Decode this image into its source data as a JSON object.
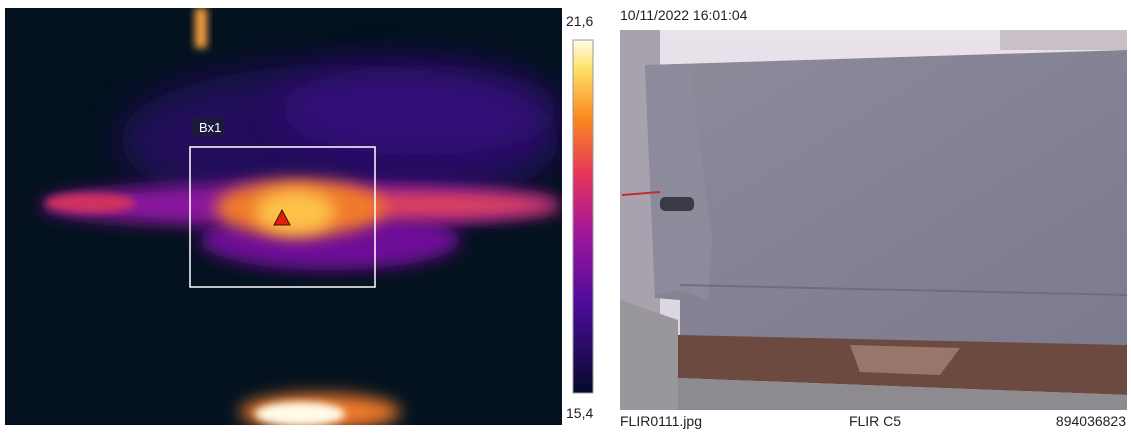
{
  "thermal": {
    "box_label": "Bx1",
    "scale_max": "21,6",
    "scale_min": "15,4"
  },
  "photo": {
    "timestamp": "10/11/2022 16:01:04"
  },
  "footer": {
    "file": "FLIR0111.jpg",
    "camera": "FLIR C5",
    "serial": "894036823"
  }
}
